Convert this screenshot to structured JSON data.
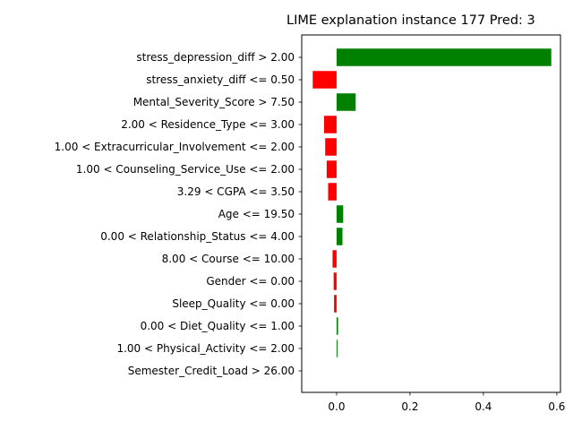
{
  "chart_data": {
    "type": "bar",
    "orientation": "horizontal",
    "title": "LIME explanation instance 177 Pred: 3",
    "xlabel": "",
    "ylabel": "",
    "xlim": [
      -0.095,
      0.61
    ],
    "xticks": [
      0.0,
      0.2,
      0.4,
      0.6
    ],
    "xtick_labels": [
      "0.0",
      "0.2",
      "0.4",
      "0.6"
    ],
    "grid": false,
    "colors": {
      "positive": "#008000",
      "negative": "#ff0000"
    },
    "categories": [
      "stress_depression_diff > 2.00",
      "stress_anxiety_diff <= 0.50",
      "Mental_Severity_Score > 7.50",
      "2.00 < Residence_Type <= 3.00",
      "1.00 < Extracurricular_Involvement <= 2.00",
      "1.00 < Counseling_Service_Use <= 2.00",
      "3.29 < CGPA <= 3.50",
      "Age <= 19.50",
      "0.00 < Relationship_Status <= 4.00",
      "8.00 < Course <= 10.00",
      "Gender <= 0.00",
      "Sleep_Quality <= 0.00",
      "0.00 < Diet_Quality <= 1.00",
      "1.00 < Physical_Activity <= 2.00",
      "Semester_Credit_Load > 26.00"
    ],
    "values": [
      0.585,
      -0.065,
      0.052,
      -0.034,
      -0.031,
      -0.027,
      -0.023,
      0.018,
      0.016,
      -0.011,
      -0.008,
      -0.007,
      0.004,
      0.002,
      0.0
    ]
  }
}
